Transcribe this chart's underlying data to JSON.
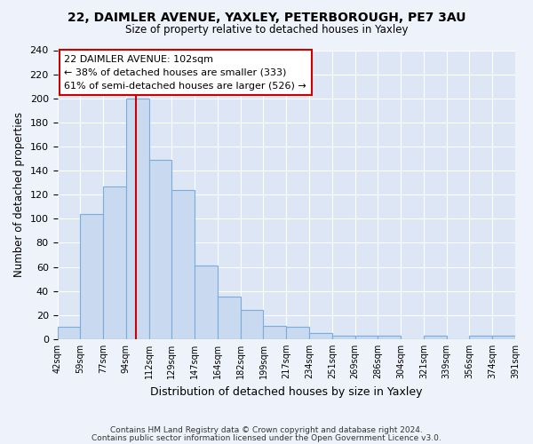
{
  "title1": "22, DAIMLER AVENUE, YAXLEY, PETERBOROUGH, PE7 3AU",
  "title2": "Size of property relative to detached houses in Yaxley",
  "xlabel": "Distribution of detached houses by size in Yaxley",
  "ylabel": "Number of detached properties",
  "bin_labels": [
    "42sqm",
    "59sqm",
    "77sqm",
    "94sqm",
    "112sqm",
    "129sqm",
    "147sqm",
    "164sqm",
    "182sqm",
    "199sqm",
    "217sqm",
    "234sqm",
    "251sqm",
    "269sqm",
    "286sqm",
    "304sqm",
    "321sqm",
    "339sqm",
    "356sqm",
    "374sqm",
    "391sqm"
  ],
  "bar_heights": [
    10,
    104,
    127,
    200,
    149,
    124,
    61,
    35,
    24,
    11,
    10,
    5,
    3,
    3,
    3,
    0,
    3,
    0,
    3,
    3
  ],
  "bar_color": "#c9d9f0",
  "bar_edge_color": "#7aaddb",
  "annotation_label": "22 DAIMLER AVENUE: 102sqm",
  "annotation_line1": "← 38% of detached houses are smaller (333)",
  "annotation_line2": "61% of semi-detached houses are larger (526) →",
  "property_line_color": "#cc0000",
  "ylim": [
    0,
    240
  ],
  "yticks": [
    0,
    20,
    40,
    60,
    80,
    100,
    120,
    140,
    160,
    180,
    200,
    220,
    240
  ],
  "footnote1": "Contains HM Land Registry data © Crown copyright and database right 2024.",
  "footnote2": "Contains public sector information licensed under the Open Government Licence v3.0.",
  "bg_color": "#eef2fa",
  "plot_bg_color": "#dce6f5"
}
